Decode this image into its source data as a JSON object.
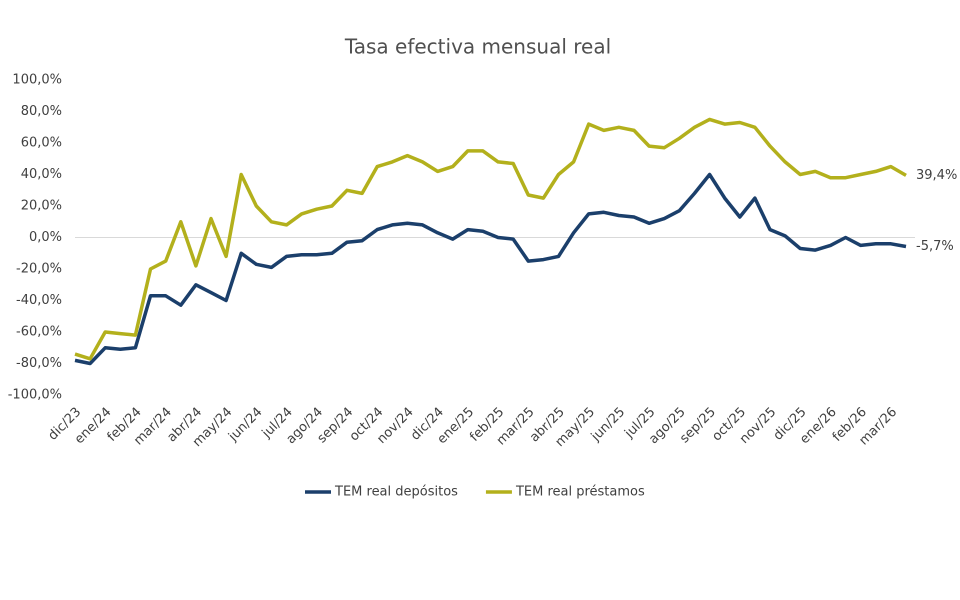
{
  "chart_data": {
    "type": "line",
    "title": "Tasa efectiva mensual real",
    "categories": [
      "dic/23",
      null,
      "ene/24",
      null,
      "feb/24",
      null,
      "mar/24",
      null,
      "abr/24",
      null,
      "may/24",
      null,
      "jun/24",
      null,
      "jul/24",
      null,
      "ago/24",
      null,
      "sep/24",
      null,
      "oct/24",
      null,
      "nov/24",
      null,
      "dic/24",
      null,
      "ene/25",
      null,
      "feb/25",
      null,
      "mar/25",
      null,
      "abr/25",
      null,
      "may/25",
      null,
      "jun/25",
      null,
      "jul/25",
      null,
      "ago/25",
      null,
      "sep/25",
      null,
      "oct/25",
      null,
      "nov/25",
      null,
      "dic/25",
      null,
      "ene/26",
      null,
      "feb/26",
      null,
      "mar/26",
      null
    ],
    "series": [
      {
        "name": "TEM real depósitos",
        "color": "#1b3f6b",
        "values": [
          -78,
          -80,
          -70,
          -71,
          -70,
          -37,
          -37,
          -43,
          -30,
          -35,
          -40,
          -10,
          -17,
          -19,
          -12,
          -11,
          -11,
          -10,
          -3,
          -2,
          5,
          8,
          9,
          8,
          3,
          -1,
          5,
          4,
          0,
          -1,
          -15,
          -14,
          -12,
          3,
          15,
          16,
          14,
          13,
          9,
          12,
          17,
          28,
          40,
          25,
          13,
          25,
          5,
          1,
          -7,
          -8,
          -5,
          0,
          -5,
          -4,
          -4,
          -5.7
        ],
        "value_labels": [
          null,
          null,
          null,
          null,
          null,
          null,
          null,
          null,
          null,
          null,
          null,
          null,
          null,
          null,
          null,
          null,
          null,
          null,
          null,
          null,
          null,
          null,
          null,
          null,
          null,
          null,
          null,
          null,
          null,
          null,
          null,
          null,
          null,
          null,
          null,
          null,
          null,
          null,
          null,
          null,
          null,
          null,
          null,
          null,
          null,
          null,
          null,
          null,
          null,
          null,
          null,
          null,
          null,
          null,
          null,
          "-5,7%"
        ]
      },
      {
        "name": "TEM real préstamos",
        "color": "#b3b01c",
        "values": [
          -74,
          -77,
          -60,
          -61,
          -62,
          -20,
          -15,
          10,
          -18,
          12,
          -12,
          40,
          20,
          10,
          8,
          15,
          18,
          20,
          30,
          28,
          45,
          48,
          52,
          48,
          42,
          45,
          55,
          55,
          48,
          47,
          27,
          25,
          40,
          48,
          72,
          68,
          70,
          68,
          58,
          57,
          63,
          70,
          75,
          72,
          73,
          70,
          58,
          48,
          40,
          42,
          38,
          38,
          40,
          42,
          45,
          39.4
        ],
        "value_labels": [
          null,
          null,
          null,
          null,
          null,
          null,
          null,
          null,
          null,
          null,
          null,
          null,
          null,
          null,
          null,
          null,
          null,
          null,
          null,
          null,
          null,
          null,
          null,
          null,
          null,
          null,
          null,
          null,
          null,
          null,
          null,
          null,
          null,
          null,
          null,
          null,
          null,
          null,
          null,
          null,
          null,
          null,
          null,
          null,
          null,
          null,
          null,
          null,
          null,
          null,
          null,
          null,
          null,
          null,
          null,
          "39,4%"
        ]
      }
    ],
    "ylim": [
      -100,
      100
    ],
    "yticks": [
      {
        "value": -100,
        "label": "-100,0%"
      },
      {
        "value": -80,
        "label": "-80,0%"
      },
      {
        "value": -60,
        "label": "-60,0%"
      },
      {
        "value": -40,
        "label": "-40,0%"
      },
      {
        "value": -20,
        "label": "-20,0%"
      },
      {
        "value": 0,
        "label": "0,0%"
      },
      {
        "value": 20,
        "label": "20,0%"
      },
      {
        "value": 40,
        "label": "40,0%"
      },
      {
        "value": 60,
        "label": "60,0%"
      },
      {
        "value": 80,
        "label": "80,0%"
      },
      {
        "value": 100,
        "label": "100,0%"
      }
    ],
    "grid": false,
    "legend": "bottom"
  }
}
